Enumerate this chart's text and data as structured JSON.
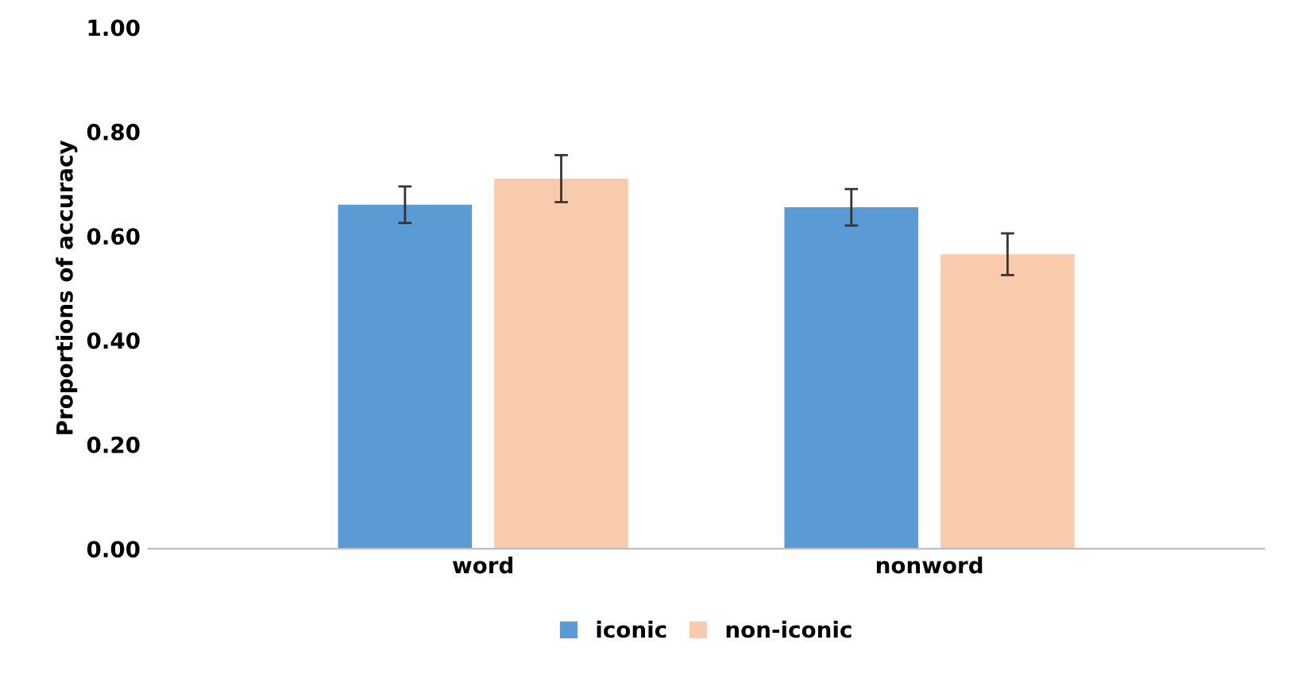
{
  "chart_data": {
    "type": "bar",
    "ylabel": "Proportions of accuracy",
    "categories": [
      "word",
      "nonword"
    ],
    "series": [
      {
        "name": "iconic",
        "color": "#5b9bd5",
        "values": [
          0.66,
          0.655
        ],
        "errors": [
          0.035,
          0.035
        ]
      },
      {
        "name": "non-iconic",
        "color": "#f8cbad",
        "values": [
          0.71,
          0.565
        ],
        "errors": [
          0.045,
          0.04
        ]
      }
    ],
    "ylim": [
      0,
      1
    ],
    "yticks": [
      {
        "value": 0,
        "label": "0.00"
      },
      {
        "value": 0.2,
        "label": "0.20"
      },
      {
        "value": 0.4,
        "label": "0.40"
      },
      {
        "value": 0.6,
        "label": "0.60"
      },
      {
        "value": 0.8,
        "label": "0.80"
      },
      {
        "value": 1,
        "label": "1.00"
      }
    ],
    "grid": false,
    "legend": "bottom"
  }
}
